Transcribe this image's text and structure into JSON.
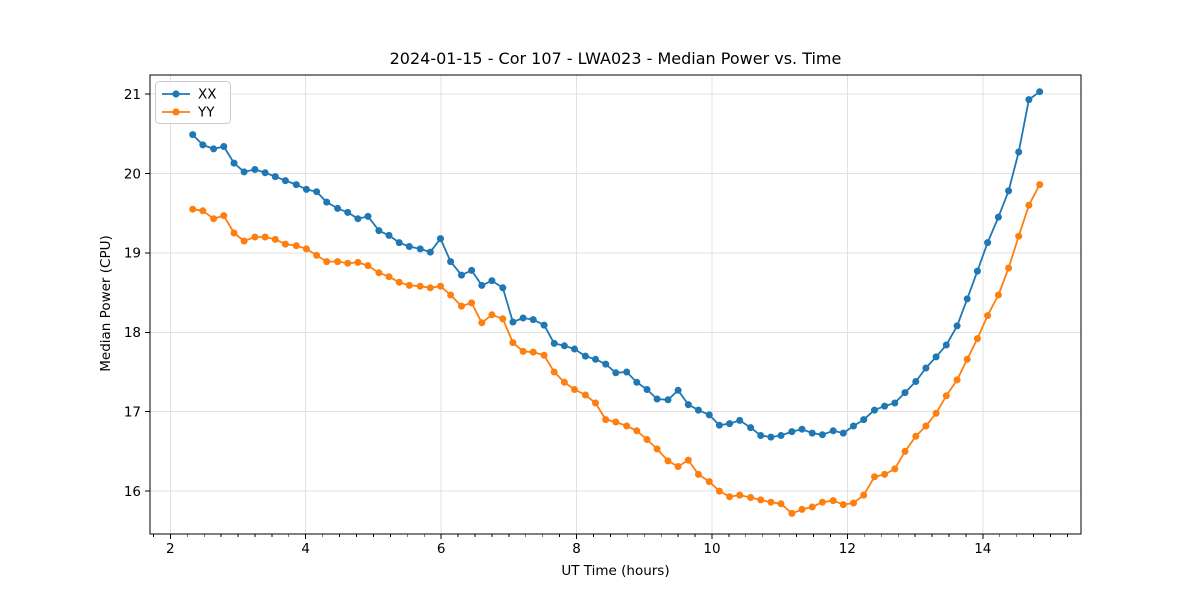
{
  "chart_data": {
    "type": "line",
    "title": "2024-01-15 - Cor 107 - LWA023 - Median Power vs. Time",
    "xlabel": "UT Time (hours)",
    "ylabel": "Median Power (CPU)",
    "xlim": [
      1.7,
      15.45
    ],
    "ylim": [
      15.46,
      21.24
    ],
    "xticks": [
      2,
      4,
      6,
      8,
      10,
      12,
      14
    ],
    "x_minor_tick_step": 0.25,
    "yticks": [
      16,
      17,
      18,
      19,
      20,
      21
    ],
    "grid": true,
    "legend_position": "upper left",
    "marker": "circle",
    "x": [
      2.33,
      2.48,
      2.64,
      2.79,
      2.94,
      3.09,
      3.25,
      3.4,
      3.55,
      3.7,
      3.86,
      4.01,
      4.16,
      4.31,
      4.47,
      4.62,
      4.77,
      4.92,
      5.08,
      5.23,
      5.38,
      5.53,
      5.69,
      5.84,
      5.99,
      6.14,
      6.3,
      6.45,
      6.6,
      6.75,
      6.91,
      7.06,
      7.21,
      7.36,
      7.52,
      7.67,
      7.82,
      7.97,
      8.13,
      8.28,
      8.43,
      8.58,
      8.74,
      8.89,
      9.04,
      9.19,
      9.35,
      9.5,
      9.65,
      9.8,
      9.96,
      10.11,
      10.26,
      10.41,
      10.57,
      10.72,
      10.87,
      11.02,
      11.18,
      11.33,
      11.48,
      11.63,
      11.79,
      11.94,
      12.09,
      12.24,
      12.4,
      12.55,
      12.7,
      12.85,
      13.01,
      13.16,
      13.31,
      13.46,
      13.62,
      13.77,
      13.92,
      14.07,
      14.23,
      14.38,
      14.53,
      14.68,
      14.84
    ],
    "series": [
      {
        "name": "XX",
        "color": "#1f77b4",
        "values": [
          20.49,
          20.36,
          20.31,
          20.34,
          20.13,
          20.02,
          20.05,
          20.01,
          19.96,
          19.91,
          19.86,
          19.8,
          19.77,
          19.64,
          19.56,
          19.51,
          19.43,
          19.46,
          19.28,
          19.22,
          19.13,
          19.08,
          19.05,
          19.01,
          19.18,
          18.89,
          18.72,
          18.78,
          18.59,
          18.65,
          18.56,
          18.13,
          18.18,
          18.16,
          18.09,
          17.86,
          17.83,
          17.79,
          17.7,
          17.66,
          17.6,
          17.49,
          17.5,
          17.37,
          17.28,
          17.16,
          17.15,
          17.27,
          17.09,
          17.02,
          16.96,
          16.83,
          16.85,
          16.89,
          16.8,
          16.7,
          16.68,
          16.7,
          16.75,
          16.78,
          16.73,
          16.71,
          16.76,
          16.73,
          16.82,
          16.9,
          17.02,
          17.07,
          17.11,
          17.24,
          17.38,
          17.55,
          17.69,
          17.84,
          18.08,
          18.42,
          18.77,
          19.13,
          19.45,
          19.78,
          20.27,
          20.93,
          21.03
        ]
      },
      {
        "name": "YY",
        "color": "#ff7f0e",
        "values": [
          19.55,
          19.53,
          19.43,
          19.47,
          19.25,
          19.15,
          19.2,
          19.2,
          19.17,
          19.11,
          19.09,
          19.05,
          18.97,
          18.89,
          18.89,
          18.87,
          18.88,
          18.84,
          18.75,
          18.7,
          18.63,
          18.59,
          18.58,
          18.56,
          18.58,
          18.47,
          18.33,
          18.37,
          18.12,
          18.22,
          18.17,
          17.87,
          17.76,
          17.75,
          17.71,
          17.5,
          17.37,
          17.28,
          17.21,
          17.11,
          16.9,
          16.87,
          16.82,
          16.76,
          16.65,
          16.53,
          16.38,
          16.31,
          16.39,
          16.21,
          16.12,
          16.0,
          15.93,
          15.95,
          15.92,
          15.89,
          15.86,
          15.84,
          15.72,
          15.77,
          15.8,
          15.86,
          15.88,
          15.83,
          15.85,
          15.95,
          16.18,
          16.21,
          16.28,
          16.5,
          16.69,
          16.82,
          16.98,
          17.2,
          17.4,
          17.66,
          17.92,
          18.21,
          18.47,
          18.81,
          19.21,
          19.6,
          19.86
        ]
      }
    ],
    "colors": {
      "grid": "#e0e0e0",
      "spine": "#000000",
      "text": "#000000",
      "background": "#ffffff"
    }
  }
}
